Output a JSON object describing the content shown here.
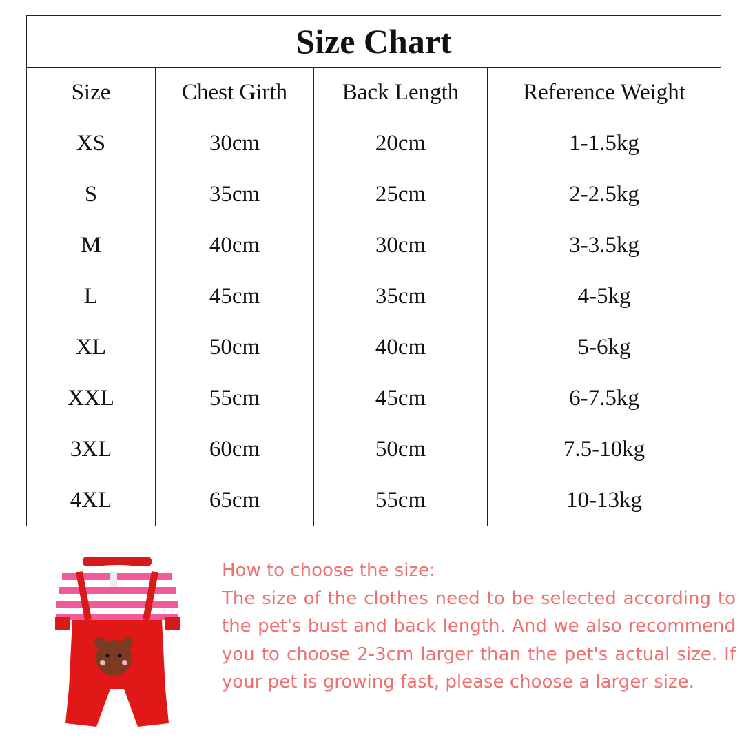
{
  "title": "Size Chart",
  "headers": [
    "Size",
    "Chest Girth",
    "Back Length",
    "Reference Weight"
  ],
  "rows": [
    [
      "XS",
      "30cm",
      "20cm",
      "1-1.5kg"
    ],
    [
      "S",
      "35cm",
      "25cm",
      "2-2.5kg"
    ],
    [
      "M",
      "40cm",
      "30cm",
      "3-3.5kg"
    ],
    [
      "L",
      "45cm",
      "35cm",
      "4-5kg"
    ],
    [
      "XL",
      "50cm",
      "40cm",
      "5-6kg"
    ],
    [
      "XXL",
      "55cm",
      "45cm",
      "6-7.5kg"
    ],
    [
      "3XL",
      "60cm",
      "50cm",
      "7.5-10kg"
    ],
    [
      "4XL",
      "65cm",
      "55cm",
      "10-13kg"
    ]
  ],
  "howto": {
    "heading": "How to choose the size:",
    "body": "The size of the clothes need to be selected according to the pet's bust and back length. And we also recommend you to choose 2-3cm larger than the pet's actual size. If your pet is growing fast, please choose a larger size."
  },
  "colors": {
    "text_accent": "#f07070",
    "garment": "#e01818",
    "stripes": "#f25a9a"
  }
}
